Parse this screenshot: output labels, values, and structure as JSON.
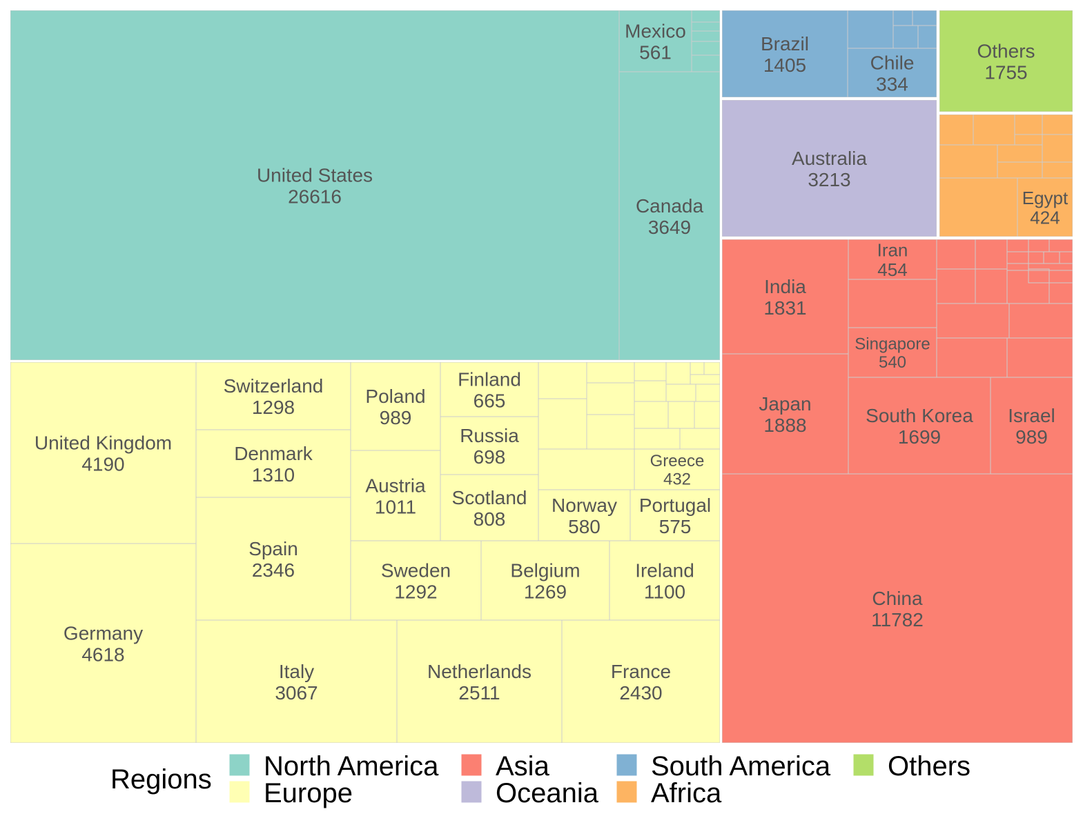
{
  "chart_data": {
    "type": "treemap",
    "legend": {
      "title": "Regions",
      "position": "bottom",
      "entries": [
        {
          "name": "North America",
          "color": "#8DD3C7"
        },
        {
          "name": "Europe",
          "color": "#FFFFB3"
        },
        {
          "name": "Asia",
          "color": "#FB8072"
        },
        {
          "name": "Oceania",
          "color": "#BEBADA"
        },
        {
          "name": "South America",
          "color": "#80B1D3"
        },
        {
          "name": "Africa",
          "color": "#FDB462"
        },
        {
          "name": "Others",
          "color": "#B3DE69"
        }
      ]
    },
    "groups": [
      {
        "region": "North America",
        "children": [
          {
            "name": "United States",
            "value": 26616
          },
          {
            "name": "Canada",
            "value": 3649
          },
          {
            "name": "Mexico",
            "value": 561
          }
        ]
      },
      {
        "region": "Europe",
        "children": [
          {
            "name": "Germany",
            "value": 4618
          },
          {
            "name": "United Kingdom",
            "value": 4190
          },
          {
            "name": "Italy",
            "value": 3067
          },
          {
            "name": "Netherlands",
            "value": 2511
          },
          {
            "name": "France",
            "value": 2430
          },
          {
            "name": "Spain",
            "value": 2346
          },
          {
            "name": "Denmark",
            "value": 1310
          },
          {
            "name": "Switzerland",
            "value": 1298
          },
          {
            "name": "Sweden",
            "value": 1292
          },
          {
            "name": "Belgium",
            "value": 1269
          },
          {
            "name": "Ireland",
            "value": 1100
          },
          {
            "name": "Austria",
            "value": 1011
          },
          {
            "name": "Poland",
            "value": 989
          },
          {
            "name": "Scotland",
            "value": 808
          },
          {
            "name": "Russia",
            "value": 698
          },
          {
            "name": "Finland",
            "value": 665
          },
          {
            "name": "Norway",
            "value": 580
          },
          {
            "name": "Portugal",
            "value": 575
          },
          {
            "name": "Greece",
            "value": 432
          }
        ]
      },
      {
        "region": "Asia",
        "children": [
          {
            "name": "China",
            "value": 11782
          },
          {
            "name": "Japan",
            "value": 1888
          },
          {
            "name": "India",
            "value": 1831
          },
          {
            "name": "South Korea",
            "value": 1699
          },
          {
            "name": "Israel",
            "value": 989
          },
          {
            "name": "Singapore",
            "value": 540
          },
          {
            "name": "Iran",
            "value": 454
          }
        ]
      },
      {
        "region": "Oceania",
        "children": [
          {
            "name": "Australia",
            "value": 3213
          }
        ]
      },
      {
        "region": "South America",
        "children": [
          {
            "name": "Brazil",
            "value": 1405
          },
          {
            "name": "Chile",
            "value": 334
          }
        ]
      },
      {
        "region": "Africa",
        "children": [
          {
            "name": "Egypt",
            "value": 424
          }
        ]
      },
      {
        "region": "Others",
        "children": [
          {
            "name": "Others",
            "value": 1755
          }
        ]
      }
    ]
  }
}
